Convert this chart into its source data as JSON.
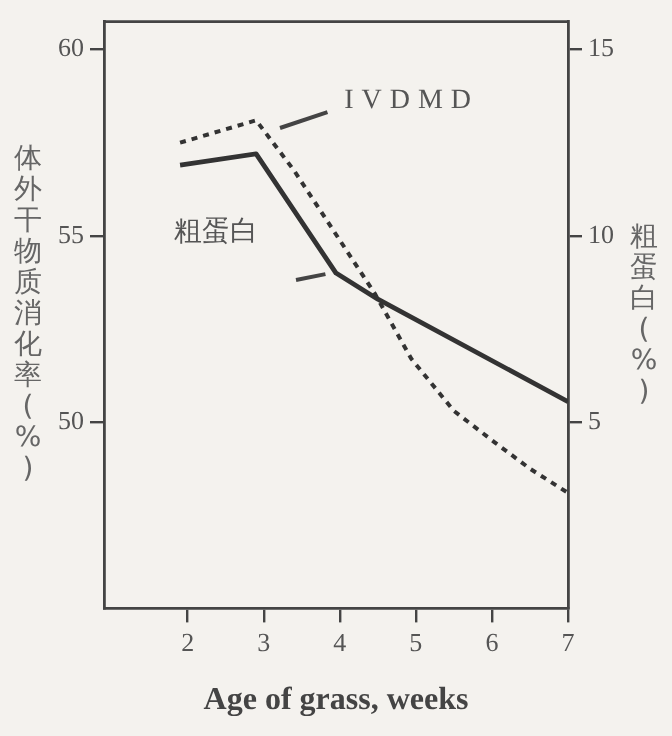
{
  "chart_data": {
    "type": "line",
    "xlabel": "Age of grass, weeks",
    "ylabel": "体外干物质消化率(%)",
    "y2label": "粗蛋白(%)",
    "xlim": [
      0.9,
      7
    ],
    "xticks": [
      2,
      3,
      4,
      5,
      6,
      7
    ],
    "ylim": [
      45,
      60.75
    ],
    "yticks": [
      50,
      55,
      60
    ],
    "y2lim": [
      0,
      15.75
    ],
    "y2ticks": [
      5,
      10,
      15
    ],
    "grid": false,
    "legend": false,
    "series": [
      {
        "name": "IVDMD",
        "color": "#333333",
        "line_style": "dotted",
        "axis": "y",
        "x": [
          1.9,
          2.9,
          3.4,
          3.93,
          4.46,
          4.94,
          5.5,
          6.04,
          6.5,
          7
        ],
        "values": [
          57.5,
          58.1,
          56.75,
          55.1,
          53.45,
          51.7,
          50.3,
          49.45,
          48.75,
          48.1
        ]
      },
      {
        "name": "粗蛋白",
        "color": "#333333",
        "line_style": "solid",
        "axis": "y2",
        "x": [
          1.9,
          2.9,
          3.95,
          4.5,
          7
        ],
        "values": [
          11.9,
          12.2,
          9.0,
          8.3,
          5.55
        ]
      }
    ]
  }
}
